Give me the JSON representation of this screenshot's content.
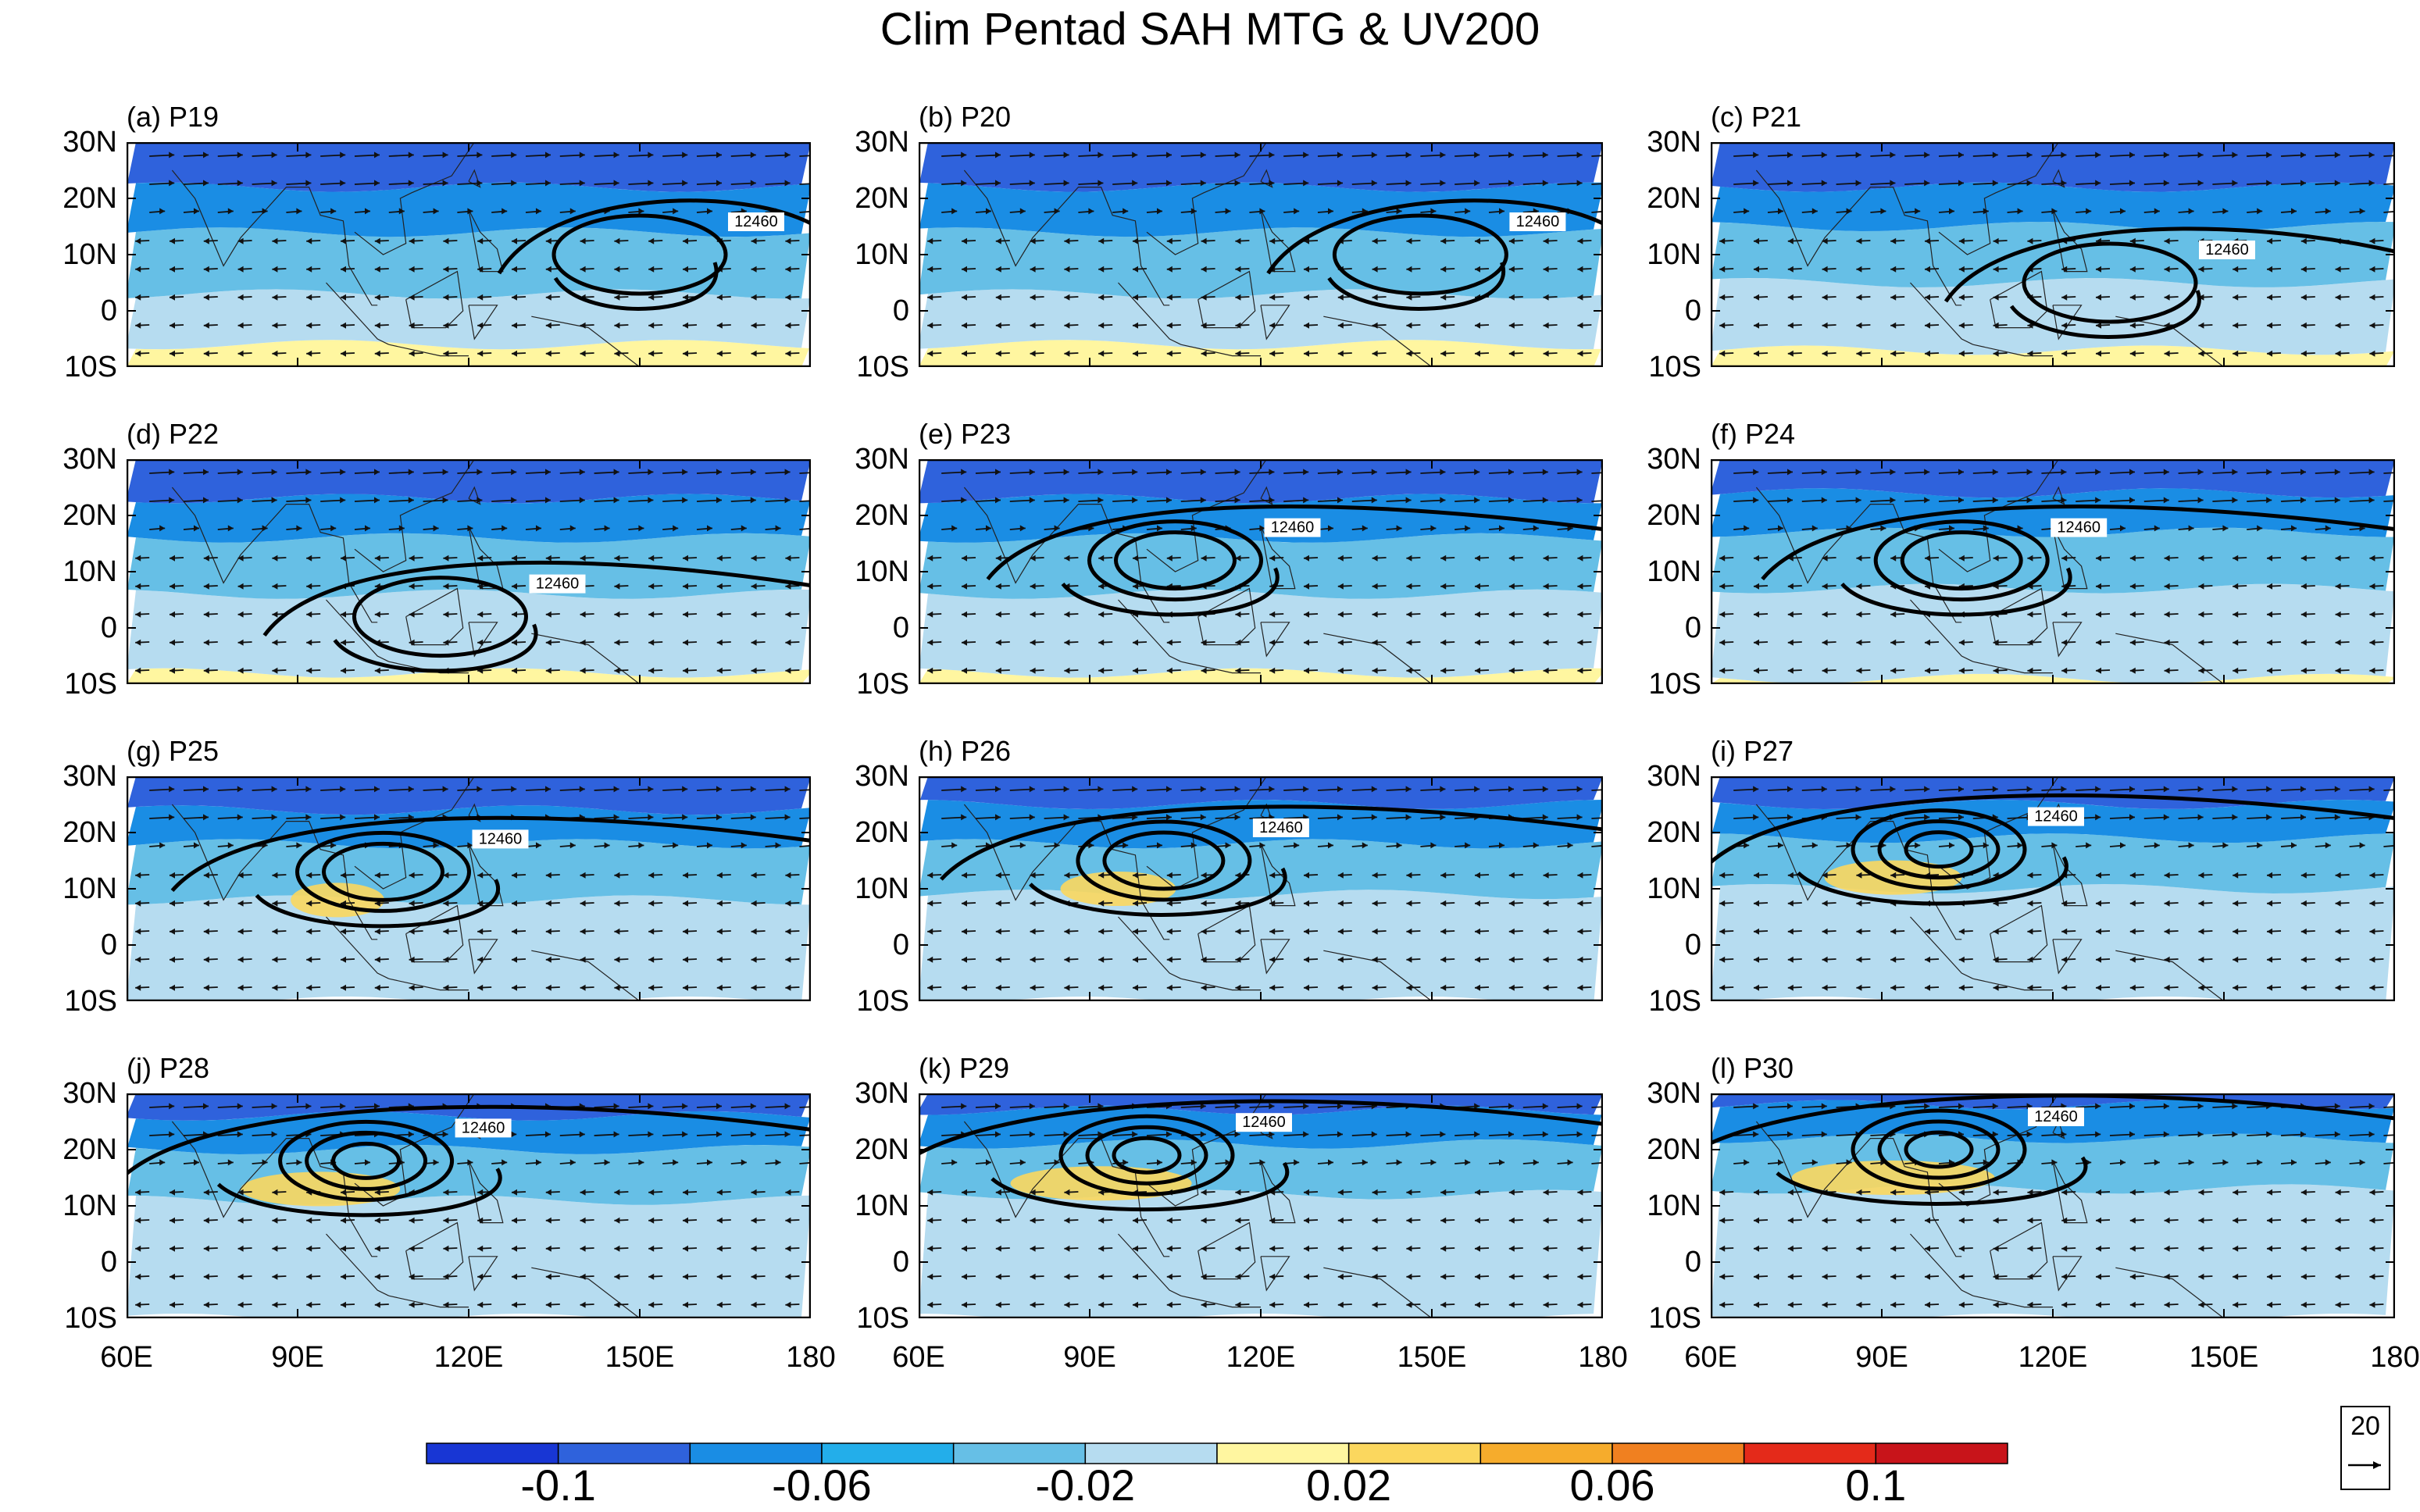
{
  "chart_data": {
    "type": "contour-map",
    "title": "Clim Pentad SAH MTG & UV200",
    "shading_variable": "MTG",
    "contour_variable": "SAH (200 hPa geopotential height)",
    "vector_variable": "UV200",
    "contour_label": "12460",
    "lon_range": [
      60,
      180
    ],
    "lat_range": [
      -10,
      30
    ],
    "lon_ticks": [
      {
        "value": 60,
        "label": "60E"
      },
      {
        "value": 90,
        "label": "90E"
      },
      {
        "value": 120,
        "label": "120E"
      },
      {
        "value": 150,
        "label": "150E"
      },
      {
        "value": 180,
        "label": "180"
      }
    ],
    "lat_ticks": [
      {
        "value": 30,
        "label": "30N"
      },
      {
        "value": 20,
        "label": "20N"
      },
      {
        "value": 10,
        "label": "10N"
      },
      {
        "value": 0,
        "label": "0"
      },
      {
        "value": -10,
        "label": "10S"
      }
    ],
    "panels": [
      {
        "label": "(a) P19",
        "pentad": 19,
        "shading_lat": [
          -6,
          3,
          14,
          22,
          30
        ],
        "highs": [
          {
            "lon": 150,
            "lat": 10
          }
        ]
      },
      {
        "label": "(b) P20",
        "pentad": 20,
        "shading_lat": [
          -6,
          3,
          14,
          22,
          30
        ],
        "highs": [
          {
            "lon": 148,
            "lat": 10
          }
        ]
      },
      {
        "label": "(c) P21",
        "pentad": 21,
        "shading_lat": [
          -7,
          5,
          15,
          22,
          30
        ],
        "highs": [
          {
            "lon": 130,
            "lat": 5
          }
        ]
      },
      {
        "label": "(d) P22",
        "pentad": 22,
        "shading_lat": [
          -8,
          6,
          16,
          23,
          30
        ],
        "highs": [
          {
            "lon": 115,
            "lat": 2
          }
        ]
      },
      {
        "label": "(e) P23",
        "pentad": 23,
        "shading_lat": [
          -8,
          6,
          16,
          23,
          30
        ],
        "highs": [
          {
            "lon": 105,
            "lat": 12
          }
        ]
      },
      {
        "label": "(f) P24",
        "pentad": 24,
        "shading_lat": [
          -9,
          7,
          17,
          24,
          30
        ],
        "highs": [
          {
            "lon": 104,
            "lat": 12
          }
        ]
      },
      {
        "label": "(g) P25",
        "pentad": 25,
        "shading_lat": [
          -10,
          8,
          18,
          24,
          30
        ],
        "highs": [
          {
            "lon": 105,
            "lat": 13
          }
        ]
      },
      {
        "label": "(h) P26",
        "pentad": 26,
        "shading_lat": [
          -10,
          9,
          18,
          25,
          30
        ],
        "highs": [
          {
            "lon": 103,
            "lat": 15
          }
        ]
      },
      {
        "label": "(i) P27",
        "pentad": 27,
        "shading_lat": [
          -10,
          10,
          19,
          25,
          30
        ],
        "highs": [
          {
            "lon": 100,
            "lat": 17
          }
        ]
      },
      {
        "label": "(j) P28",
        "pentad": 28,
        "shading_lat": [
          -10,
          11,
          20,
          26,
          30
        ],
        "highs": [
          {
            "lon": 102,
            "lat": 18
          }
        ]
      },
      {
        "label": "(k) P29",
        "pentad": 29,
        "shading_lat": [
          -10,
          12,
          21,
          27,
          30
        ],
        "highs": [
          {
            "lon": 100,
            "lat": 19
          }
        ]
      },
      {
        "label": "(l) P30",
        "pentad": 30,
        "shading_lat": [
          -10,
          13,
          22,
          28,
          30
        ],
        "highs": [
          {
            "lon": 100,
            "lat": 20
          }
        ]
      }
    ],
    "colorbar": {
      "levels": [
        -0.12,
        -0.1,
        -0.08,
        -0.06,
        -0.04,
        -0.02,
        0,
        0.02,
        0.04,
        0.06,
        0.08,
        0.1,
        0.12
      ],
      "colors": [
        "#1836d4",
        "#2f62dc",
        "#1a8de4",
        "#23aeea",
        "#66bfe6",
        "#b6dcf0",
        "#fff6a0",
        "#fbd75e",
        "#f6ac2c",
        "#f08020",
        "#e42a1a",
        "#c8141a"
      ],
      "tick_labels": [
        {
          "value": -0.1,
          "label": "-0.1"
        },
        {
          "value": -0.06,
          "label": "-0.06"
        },
        {
          "value": -0.02,
          "label": "-0.02"
        },
        {
          "value": 0.02,
          "label": "0.02"
        },
        {
          "value": 0.06,
          "label": "0.06"
        },
        {
          "value": 0.1,
          "label": "0.1"
        }
      ]
    },
    "reference_vector": {
      "value": "20"
    }
  }
}
